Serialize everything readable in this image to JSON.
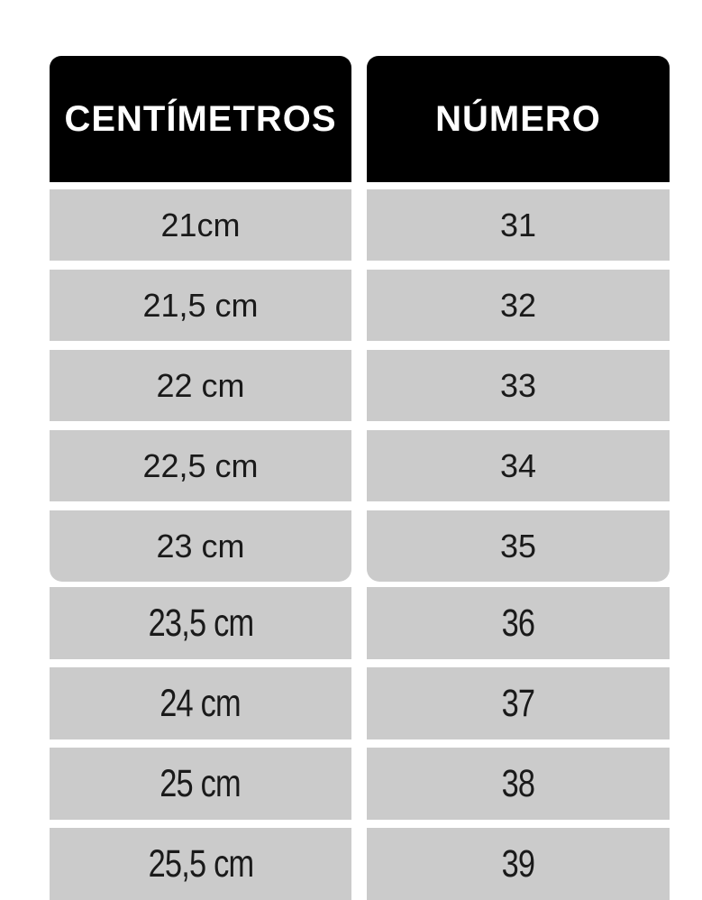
{
  "chart_data": {
    "type": "table",
    "columns": [
      "CENTÍMETROS",
      "NÚMERO"
    ],
    "rows": [
      [
        "21cm",
        "31"
      ],
      [
        "21,5 cm",
        "32"
      ],
      [
        "22 cm",
        "33"
      ],
      [
        "22,5 cm",
        "34"
      ],
      [
        "23 cm",
        "35"
      ],
      [
        "23,5 cm",
        "36"
      ],
      [
        "24 cm",
        "37"
      ],
      [
        "25 cm",
        "38"
      ],
      [
        "25,5 cm",
        "39"
      ]
    ],
    "title": "",
    "layout": {
      "group_1_row_indices": [
        0,
        1,
        2,
        3,
        4
      ],
      "group_2_row_indices": [
        5,
        6,
        7,
        8
      ],
      "last_row_clipped_by_image_bottom": true
    }
  },
  "styles": {
    "header_bg": "#000000",
    "header_text_color": "#ffffff",
    "row_bg": "#cbcbcb",
    "row_text_color": "#1a1a1a",
    "page_bg": "#ffffff"
  }
}
